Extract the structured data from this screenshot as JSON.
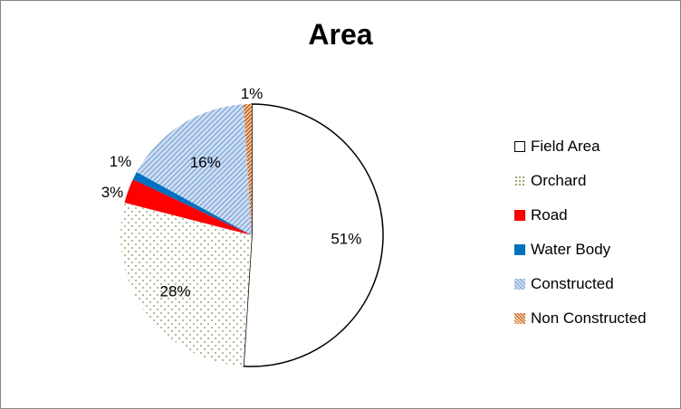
{
  "chart_data": {
    "type": "pie",
    "title": "Area",
    "legend_position": "right",
    "slices": [
      {
        "name": "Field Area",
        "value": 51,
        "label": "51%",
        "pattern": "solid",
        "fill": "#ffffff",
        "stroke": "#000000"
      },
      {
        "name": "Orchard",
        "value": 28,
        "label": "28%",
        "pattern": "dots",
        "fill": "#ffffff",
        "stroke": "#4f6228"
      },
      {
        "name": "Road",
        "value": 3,
        "label": "3%",
        "pattern": "solid",
        "fill": "#ff0000",
        "stroke": "#ff0000"
      },
      {
        "name": "Water Body",
        "value": 1,
        "label": "1%",
        "pattern": "solid",
        "fill": "#0070c0",
        "stroke": "#0070c0"
      },
      {
        "name": "Constructed",
        "value": 16,
        "label": "16%",
        "pattern": "diag-blue",
        "fill": "#c6d9f1",
        "stroke": "#8eb4e3"
      },
      {
        "name": "Non Constructed",
        "value": 1,
        "label": "1%",
        "pattern": "diag-orange",
        "fill": "#f4b183",
        "stroke": "#c55a11"
      }
    ]
  }
}
